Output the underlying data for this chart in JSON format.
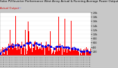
{
  "title": "Solar PV/Inverter Performance West Array Actual & Running Average Power Output",
  "subtitle_actual": "Actual Output",
  "subtitle_avg": "----",
  "bg_color": "#c8c8c8",
  "plot_bg": "#ffffff",
  "bar_color": "#ff0000",
  "avg_color": "#0000ee",
  "avg_dot_color": "#0000ee",
  "grid_color": "#aaaaaa",
  "n_points": 365,
  "ylim": [
    0,
    2000
  ],
  "ytick_vals": [
    200,
    400,
    600,
    800,
    1000,
    1200,
    1400,
    1600,
    1800,
    2000
  ],
  "ytick_labels": [
    "200",
    "400",
    "600",
    "800",
    "1.0k",
    "1.2k",
    "1.4k",
    "1.6k",
    "1.8k",
    "2.0k"
  ],
  "avg_line_y": 550,
  "title_fontsize": 3.5,
  "label_fontsize": 2.8
}
